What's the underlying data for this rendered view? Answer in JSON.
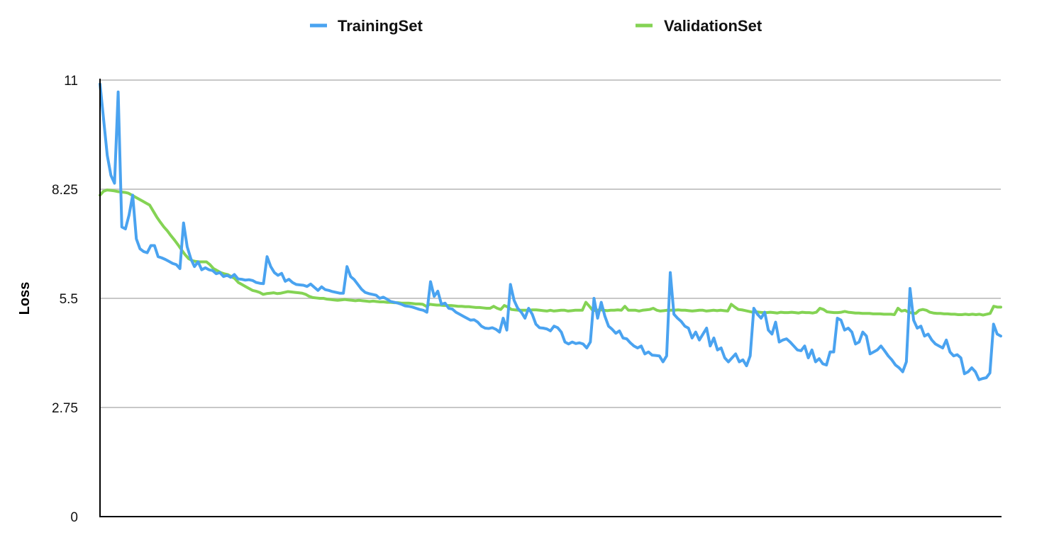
{
  "chart_data": {
    "type": "line",
    "title": "",
    "xlabel": "",
    "ylabel": "Loss",
    "ylim": [
      0,
      11
    ],
    "yticks": [
      "0",
      "2.75",
      "5.5",
      "8.25",
      "11"
    ],
    "grid": true,
    "legend_position": "top",
    "series": [
      {
        "name": "TrainingSet",
        "color": "#4aa3f0",
        "values": [
          10.9,
          10.0,
          9.1,
          8.6,
          8.4,
          10.7,
          7.3,
          7.25,
          7.6,
          8.1,
          7.0,
          6.75,
          6.68,
          6.65,
          6.83,
          6.83,
          6.55,
          6.52,
          6.48,
          6.43,
          6.38,
          6.35,
          6.25,
          7.4,
          6.8,
          6.5,
          6.3,
          6.42,
          6.22,
          6.27,
          6.22,
          6.2,
          6.12,
          6.15,
          6.05,
          6.08,
          6.03,
          6.1,
          5.99,
          5.98,
          5.96,
          5.97,
          5.95,
          5.9,
          5.88,
          5.87,
          6.55,
          6.3,
          6.15,
          6.08,
          6.13,
          5.93,
          5.98,
          5.9,
          5.85,
          5.84,
          5.83,
          5.8,
          5.86,
          5.78,
          5.7,
          5.79,
          5.72,
          5.7,
          5.67,
          5.65,
          5.63,
          5.63,
          6.3,
          6.05,
          5.97,
          5.85,
          5.73,
          5.65,
          5.62,
          5.6,
          5.58,
          5.5,
          5.53,
          5.48,
          5.42,
          5.4,
          5.38,
          5.35,
          5.31,
          5.3,
          5.28,
          5.25,
          5.22,
          5.2,
          5.15,
          5.92,
          5.55,
          5.68,
          5.35,
          5.38,
          5.25,
          5.23,
          5.15,
          5.1,
          5.05,
          5.0,
          4.95,
          4.96,
          4.9,
          4.8,
          4.75,
          4.74,
          4.76,
          4.72,
          4.65,
          5.0,
          4.7,
          5.85,
          5.45,
          5.25,
          5.15,
          5.0,
          5.25,
          5.1,
          4.85,
          4.76,
          4.75,
          4.73,
          4.68,
          4.8,
          4.76,
          4.65,
          4.4,
          4.35,
          4.4,
          4.36,
          4.38,
          4.35,
          4.25,
          4.4,
          5.5,
          5.0,
          5.4,
          5.05,
          4.8,
          4.72,
          4.62,
          4.68,
          4.5,
          4.48,
          4.38,
          4.3,
          4.25,
          4.3,
          4.1,
          4.15,
          4.07,
          4.06,
          4.05,
          3.9,
          4.05,
          6.15,
          5.1,
          5.0,
          4.92,
          4.8,
          4.75,
          4.5,
          4.65,
          4.45,
          4.6,
          4.75,
          4.3,
          4.5,
          4.2,
          4.25,
          4.0,
          3.9,
          4.0,
          4.1,
          3.9,
          3.95,
          3.8,
          4.05,
          5.25,
          5.1,
          5.0,
          5.15,
          4.7,
          4.6,
          4.9,
          4.4,
          4.45,
          4.48,
          4.4,
          4.3,
          4.2,
          4.18,
          4.3,
          4.0,
          4.2,
          3.9,
          3.98,
          3.85,
          3.82,
          4.15,
          4.15,
          5.0,
          4.95,
          4.7,
          4.75,
          4.65,
          4.35,
          4.4,
          4.65,
          4.55,
          4.1,
          4.15,
          4.2,
          4.3,
          4.18,
          4.05,
          3.95,
          3.82,
          3.75,
          3.65,
          3.9,
          5.75,
          4.95,
          4.75,
          4.8,
          4.55,
          4.6,
          4.45,
          4.35,
          4.3,
          4.25,
          4.45,
          4.15,
          4.05,
          4.08,
          4.0,
          3.6,
          3.65,
          3.75,
          3.65,
          3.45,
          3.48,
          3.5,
          3.62,
          4.85,
          4.6,
          4.55
        ]
      },
      {
        "name": "ValidationSet",
        "color": "#84d354",
        "values": [
          8.1,
          8.2,
          8.23,
          8.22,
          8.21,
          8.19,
          8.18,
          8.17,
          8.15,
          8.1,
          8.05,
          8.0,
          7.95,
          7.9,
          7.85,
          7.7,
          7.55,
          7.42,
          7.3,
          7.2,
          7.08,
          6.97,
          6.85,
          6.72,
          6.6,
          6.5,
          6.45,
          6.43,
          6.42,
          6.42,
          6.42,
          6.35,
          6.25,
          6.2,
          6.15,
          6.12,
          6.1,
          6.05,
          6.0,
          5.9,
          5.85,
          5.8,
          5.75,
          5.7,
          5.68,
          5.65,
          5.6,
          5.62,
          5.63,
          5.64,
          5.62,
          5.63,
          5.65,
          5.67,
          5.66,
          5.65,
          5.64,
          5.63,
          5.6,
          5.55,
          5.52,
          5.51,
          5.5,
          5.5,
          5.48,
          5.47,
          5.46,
          5.45,
          5.46,
          5.47,
          5.46,
          5.45,
          5.44,
          5.45,
          5.44,
          5.43,
          5.42,
          5.43,
          5.42,
          5.41,
          5.41,
          5.4,
          5.4,
          5.39,
          5.39,
          5.38,
          5.38,
          5.38,
          5.37,
          5.36,
          5.36,
          5.35,
          5.3,
          5.35,
          5.34,
          5.33,
          5.33,
          5.32,
          5.32,
          5.32,
          5.31,
          5.3,
          5.3,
          5.29,
          5.29,
          5.28,
          5.27,
          5.27,
          5.26,
          5.25,
          5.25,
          5.3,
          5.25,
          5.22,
          5.32,
          5.28,
          5.22,
          5.21,
          5.2,
          5.2,
          5.2,
          5.2,
          5.21,
          5.21,
          5.2,
          5.19,
          5.18,
          5.2,
          5.18,
          5.19,
          5.2,
          5.2,
          5.18,
          5.19,
          5.2,
          5.2,
          5.2,
          5.4,
          5.3,
          5.19,
          5.2,
          5.21,
          5.2,
          5.19,
          5.2,
          5.2,
          5.21,
          5.2,
          5.3,
          5.2,
          5.2,
          5.2,
          5.18,
          5.2,
          5.21,
          5.22,
          5.25,
          5.2,
          5.18,
          5.19,
          5.2,
          5.2,
          5.2,
          5.21,
          5.2,
          5.2,
          5.19,
          5.18,
          5.19,
          5.2,
          5.2,
          5.18,
          5.19,
          5.2,
          5.19,
          5.2,
          5.19,
          5.18,
          5.35,
          5.28,
          5.22,
          5.21,
          5.19,
          5.17,
          5.15,
          5.16,
          5.15,
          5.14,
          5.14,
          5.15,
          5.14,
          5.13,
          5.15,
          5.14,
          5.14,
          5.15,
          5.14,
          5.13,
          5.15,
          5.14,
          5.14,
          5.13,
          5.15,
          5.25,
          5.22,
          5.16,
          5.15,
          5.14,
          5.14,
          5.15,
          5.17,
          5.15,
          5.14,
          5.13,
          5.13,
          5.12,
          5.12,
          5.12,
          5.11,
          5.11,
          5.11,
          5.1,
          5.1,
          5.1,
          5.09,
          5.25,
          5.18,
          5.2,
          5.15,
          5.13,
          5.12,
          5.2,
          5.22,
          5.2,
          5.15,
          5.13,
          5.12,
          5.12,
          5.11,
          5.11,
          5.1,
          5.1,
          5.09,
          5.09,
          5.1,
          5.09,
          5.1,
          5.09,
          5.1,
          5.08,
          5.1,
          5.12,
          5.3,
          5.28,
          5.28
        ]
      }
    ]
  }
}
